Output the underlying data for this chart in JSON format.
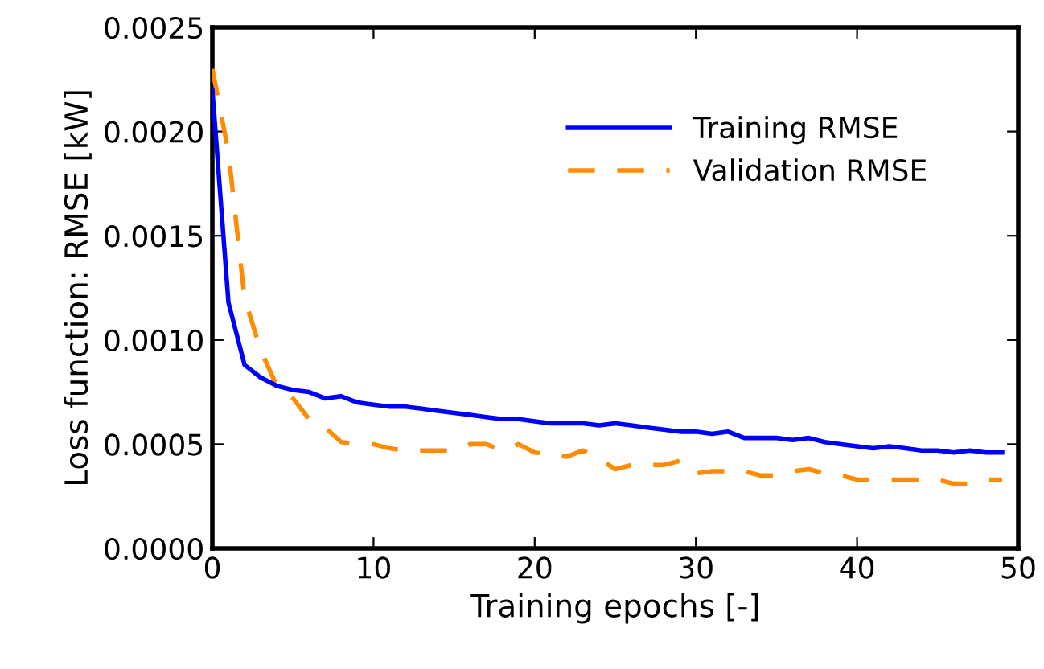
{
  "chart_data": {
    "type": "line",
    "xlabel": "Training epochs [-]",
    "ylabel": "Loss function: RMSE [kW]",
    "x": [
      0,
      1,
      2,
      3,
      4,
      5,
      6,
      7,
      8,
      9,
      10,
      11,
      12,
      13,
      14,
      15,
      16,
      17,
      18,
      19,
      20,
      21,
      22,
      23,
      24,
      25,
      26,
      27,
      28,
      29,
      30,
      31,
      32,
      33,
      34,
      35,
      36,
      37,
      38,
      39,
      40,
      41,
      42,
      43,
      44,
      45,
      46,
      47,
      48,
      49
    ],
    "series": [
      {
        "name": "Training RMSE",
        "color": "#0000ff",
        "line_style": "solid",
        "values": [
          0.0022,
          0.00118,
          0.00088,
          0.00082,
          0.00078,
          0.00076,
          0.00075,
          0.00072,
          0.00073,
          0.0007,
          0.00069,
          0.00068,
          0.00068,
          0.00067,
          0.00066,
          0.00065,
          0.00064,
          0.00063,
          0.00062,
          0.00062,
          0.00061,
          0.0006,
          0.0006,
          0.0006,
          0.00059,
          0.0006,
          0.00059,
          0.00058,
          0.00057,
          0.00056,
          0.00056,
          0.00055,
          0.00056,
          0.00053,
          0.00053,
          0.00053,
          0.00052,
          0.00053,
          0.00051,
          0.0005,
          0.00049,
          0.00048,
          0.00049,
          0.00048,
          0.00047,
          0.00047,
          0.00046,
          0.00047,
          0.00046,
          0.00046
        ]
      },
      {
        "name": "Validation RMSE",
        "color": "#ff8c00",
        "line_style": "dashed",
        "values": [
          0.0023,
          0.0019,
          0.0012,
          0.00095,
          0.00078,
          0.00072,
          0.00062,
          0.00058,
          0.00051,
          0.0005,
          0.0005,
          0.00048,
          0.00047,
          0.00047,
          0.00047,
          0.00047,
          0.0005,
          0.0005,
          0.00047,
          0.0005,
          0.00046,
          0.00045,
          0.00044,
          0.00047,
          0.00043,
          0.00038,
          0.0004,
          0.0004,
          0.0004,
          0.00042,
          0.00036,
          0.00037,
          0.00037,
          0.00037,
          0.00035,
          0.00035,
          0.00037,
          0.00038,
          0.00036,
          0.00035,
          0.00033,
          0.00033,
          0.00033,
          0.00033,
          0.00033,
          0.00033,
          0.00031,
          0.00031,
          0.00033,
          0.00033
        ]
      }
    ],
    "xlim": [
      0,
      50
    ],
    "xticks": [
      0,
      10,
      20,
      30,
      40,
      50
    ],
    "ylim": [
      0,
      0.0025
    ],
    "yticks": [
      {
        "value": 0,
        "label": "0.0000"
      },
      {
        "value": 0.0005,
        "label": "0.0005"
      },
      {
        "value": 0.001,
        "label": "0.0010"
      },
      {
        "value": 0.0015,
        "label": "0.0015"
      },
      {
        "value": 0.002,
        "label": "0.0020"
      },
      {
        "value": 0.0025,
        "label": "0.0025"
      }
    ],
    "grid": false,
    "legend": "top right",
    "marker": "none"
  }
}
